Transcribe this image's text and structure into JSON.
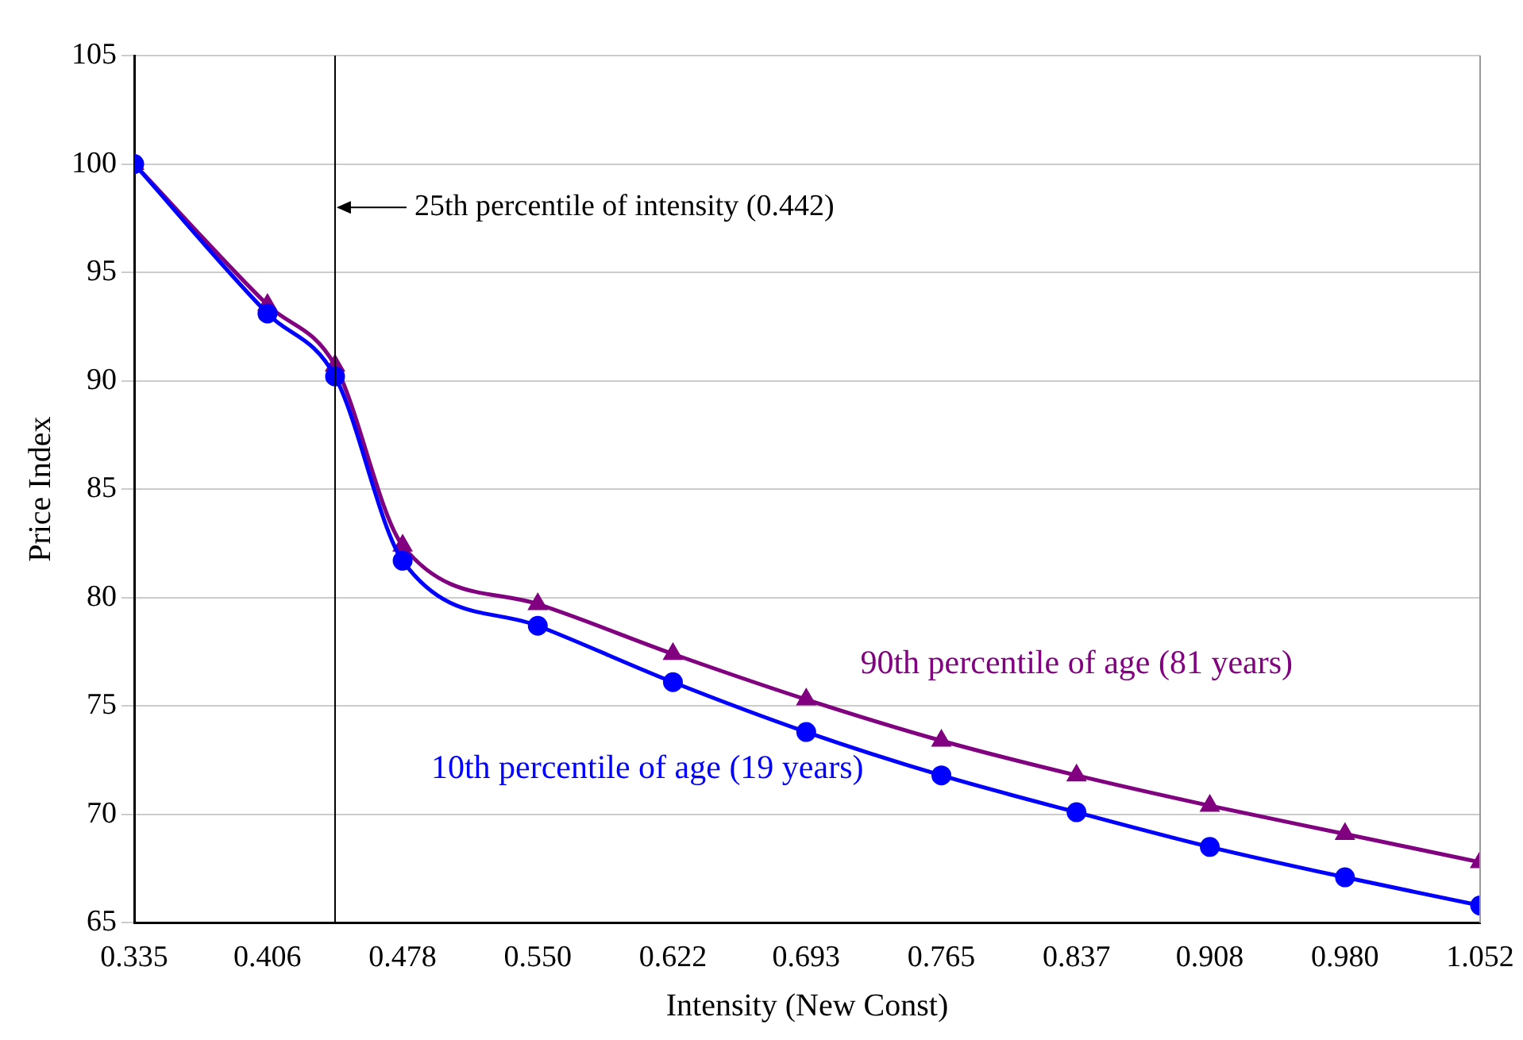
{
  "chart_data": {
    "type": "line",
    "xlabel": "Intensity (New Const)",
    "ylabel": "Price Index",
    "x": [
      0.335,
      0.406,
      0.442,
      0.478,
      0.55,
      0.622,
      0.693,
      0.765,
      0.837,
      0.908,
      0.98,
      1.052
    ],
    "series": [
      {
        "name": "10th percentile of age (19 years)",
        "color": "#0000ff",
        "marker": "circle",
        "values": [
          100,
          93.1,
          90.2,
          81.7,
          78.7,
          76.1,
          73.8,
          71.8,
          70.1,
          68.5,
          67.1,
          65.8
        ]
      },
      {
        "name": "90th percentile of age (81 years)",
        "color": "#800080",
        "marker": "triangle",
        "values": [
          100,
          93.5,
          90.7,
          82.4,
          79.7,
          77.4,
          75.3,
          73.4,
          71.8,
          70.4,
          69.1,
          67.8
        ]
      }
    ],
    "xlim": [
      0.335,
      1.052
    ],
    "xticks": [
      0.335,
      0.406,
      0.478,
      {
        "value": 0.55,
        "label": "0.550"
      },
      0.622,
      0.693,
      0.765,
      0.837,
      0.908,
      {
        "value": 0.98,
        "label": "0.980"
      },
      1.052
    ],
    "ylim": [
      65,
      105
    ],
    "yticks": [
      65,
      70,
      75,
      80,
      85,
      90,
      95,
      100,
      105
    ],
    "grid": "y",
    "legend": false,
    "ref_lines": [
      {
        "axis": "x",
        "value": 0.442,
        "color": "#000000"
      }
    ],
    "annotations": [
      {
        "text": "25th percentile of intensity (0.442)",
        "x": 0.442,
        "y": 98
      }
    ]
  }
}
